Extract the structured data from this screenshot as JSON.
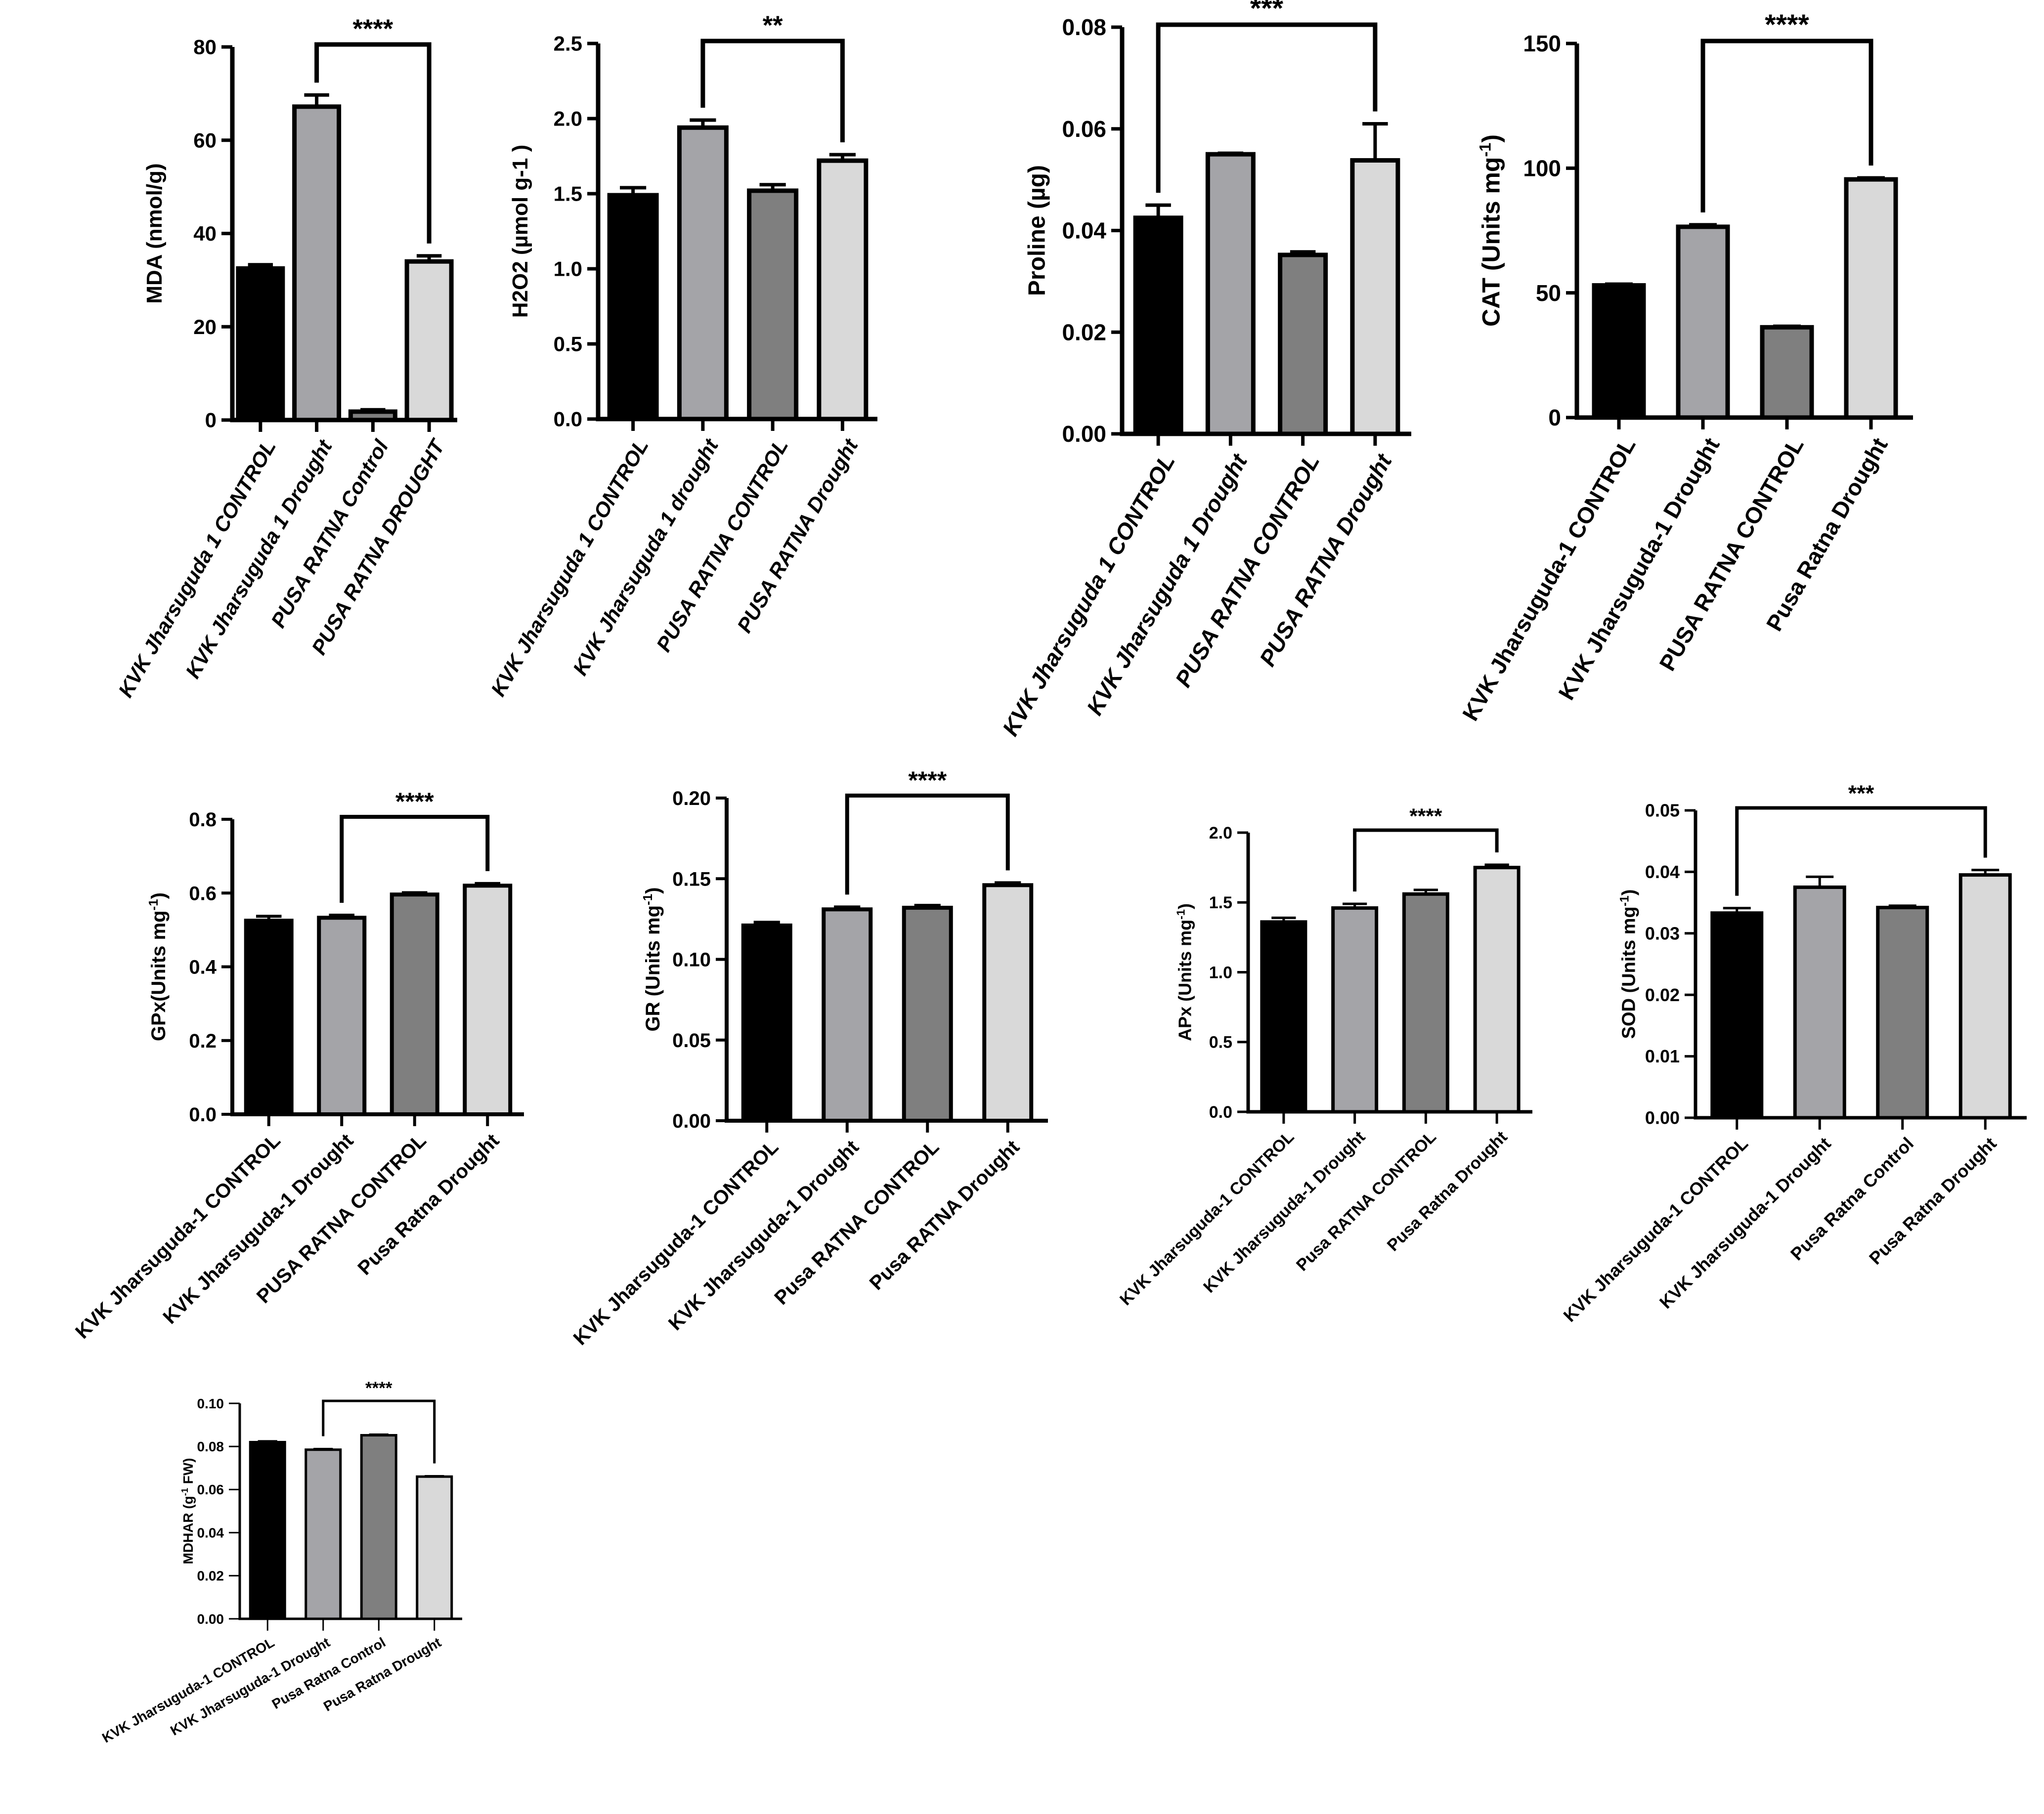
{
  "colors": {
    "bar_black": "#000000",
    "bar_gray_light": "#a4a4a8",
    "bar_gray_dark": "#7f7f7f",
    "bar_very_light": "#d9d9d9",
    "axis": "#000000"
  },
  "chart_data": [
    {
      "id": "mda",
      "type": "bar",
      "ylabel": "MDA (nmol/g)",
      "ylim": [
        0,
        80
      ],
      "yticks": [
        "0",
        "20",
        "40",
        "60",
        "80"
      ],
      "categories": [
        "KVK Jharsuguda 1 CONTROL",
        "KVK Jharsuguda 1 Drought",
        "PUSA RATNA Control",
        "PUSA RATNA DROUGHT"
      ],
      "values": [
        32.5,
        67.2,
        1.8,
        34.0
      ],
      "errors": [
        0.8,
        2.5,
        0.4,
        1.2
      ],
      "significance": {
        "label": "****",
        "from": 1,
        "to": 3
      }
    },
    {
      "id": "h2o2",
      "type": "bar",
      "ylabel": "H2O2 (µmol g-1 )",
      "ylim": [
        0,
        2.5
      ],
      "yticks": [
        "0.0",
        "0.5",
        "1.0",
        "1.5",
        "2.0",
        "2.5"
      ],
      "categories": [
        "KVK Jharsuguda 1 CONTROL",
        "KVK Jharsuguda 1 drought",
        "PUSA RATNA CONTROL",
        "PUSA RATNA Drought"
      ],
      "values": [
        1.49,
        1.94,
        1.52,
        1.72
      ],
      "errors": [
        0.05,
        0.05,
        0.04,
        0.04
      ],
      "significance": {
        "label": "**",
        "from": 1,
        "to": 3
      }
    },
    {
      "id": "proline",
      "type": "bar",
      "ylabel": "Proline (µg)",
      "ylim": [
        0,
        0.08
      ],
      "yticks": [
        "0.00",
        "0.02",
        "0.04",
        "0.06",
        "0.08"
      ],
      "categories": [
        "KVK Jharsuguda 1 CONTROL",
        "KVK Jharsuguda 1 Drought",
        "PUSA RATNA CONTROL",
        "PUSA RATNA Drought"
      ],
      "values": [
        0.0425,
        0.055,
        0.0352,
        0.0538
      ],
      "errors": [
        0.0025,
        0.0002,
        0.0006,
        0.0072
      ],
      "significance": {
        "label": "***",
        "from": 0,
        "to": 3
      }
    },
    {
      "id": "cat",
      "type": "bar",
      "ylabel": "CAT (Units mg",
      "ylabel_sup": "-1",
      "ylabel_close": ")",
      "ylim": [
        0,
        150
      ],
      "yticks": [
        "0",
        "50",
        "100",
        "150"
      ],
      "categories": [
        "KVK Jharsuguda-1 CONTROL",
        "KVK Jharsuguda-1 Drought",
        "PUSA RATNA CONTROL",
        "Pusa Ratna Drought"
      ],
      "values": [
        53,
        76.5,
        36.2,
        95.5
      ],
      "errors": [
        0.5,
        0.8,
        0.4,
        0.6
      ],
      "significance": {
        "label": "****",
        "from": 1,
        "to": 3
      }
    },
    {
      "id": "gpx",
      "type": "bar",
      "ylabel": "GPx(Units mg",
      "ylabel_sup": "-1",
      "ylabel_close": ")",
      "ylim": [
        0,
        0.8
      ],
      "yticks": [
        "0.0",
        "0.2",
        "0.4",
        "0.6",
        "0.8"
      ],
      "categories": [
        "KVK Jharsuguda-1 CONTROL",
        "KVK Jharsuguda-1 Drought",
        "PUSA RATNA CONTROL",
        "Pusa Ratna Drought"
      ],
      "values": [
        0.525,
        0.533,
        0.596,
        0.62
      ],
      "errors": [
        0.012,
        0.007,
        0.005,
        0.006
      ],
      "significance": {
        "label": "****",
        "from": 1,
        "to": 3
      }
    },
    {
      "id": "gr",
      "type": "bar",
      "ylabel": "GR (Units mg",
      "ylabel_sup": "-1",
      "ylabel_close": ")",
      "ylim": [
        0,
        0.2
      ],
      "yticks": [
        "0.00",
        "0.05",
        "0.10",
        "0.15",
        "0.20"
      ],
      "categories": [
        "KVK Jharsuguda-1 CONTROL",
        "KVK Jharsuguda-1 Drought",
        "Pusa RATNA CONTROL",
        "Pusa RATNA Drought"
      ],
      "values": [
        0.121,
        0.131,
        0.132,
        0.146
      ],
      "errors": [
        0.002,
        0.0015,
        0.0015,
        0.0015
      ],
      "significance": {
        "label": "****",
        "from": 1,
        "to": 3
      }
    },
    {
      "id": "apx",
      "type": "bar",
      "ylabel": "APx (Units mg",
      "ylabel_sup": "-1",
      "ylabel_close": ")",
      "ylim": [
        0,
        2.0
      ],
      "yticks": [
        "0.0",
        "0.5",
        "1.0",
        "1.5",
        "2.0"
      ],
      "categories": [
        "KVK Jharsuguda-1 CONTROL",
        "KVK Jharsuguda-1 Drought",
        "Pusa RATNA CONTROL",
        "Pusa Ratna Drought"
      ],
      "values": [
        1.36,
        1.46,
        1.56,
        1.75
      ],
      "errors": [
        0.03,
        0.03,
        0.03,
        0.02
      ],
      "significance": {
        "label": "****",
        "from": 1,
        "to": 3
      }
    },
    {
      "id": "sod",
      "type": "bar",
      "ylabel": "SOD (Units mg",
      "ylabel_sup": "-1",
      "ylabel_close": ")",
      "ylim": [
        0,
        0.05
      ],
      "yticks": [
        "0.00",
        "0.01",
        "0.02",
        "0.03",
        "0.04",
        "0.05"
      ],
      "categories": [
        "KVK Jharsuguda-1 CONTROL",
        "KVK Jharsuguda-1 Drought",
        "Pusa Ratna Control",
        "Pusa Ratna Drought"
      ],
      "values": [
        0.0333,
        0.0375,
        0.0342,
        0.0395
      ],
      "errors": [
        0.0008,
        0.0017,
        0.0003,
        0.0008
      ],
      "significance": {
        "label": "***",
        "from": 0,
        "to": 3
      }
    },
    {
      "id": "mdhar",
      "type": "bar",
      "ylabel": "MDHAR (g",
      "ylabel_sup": "-1",
      "ylabel_close": " FW)",
      "ylim": [
        0,
        0.1
      ],
      "yticks": [
        "0.00",
        "0.02",
        "0.04",
        "0.06",
        "0.08",
        "0.10"
      ],
      "categories": [
        "KVK Jharsuguda-1 CONTROL",
        "KVK Jharsuguda-1 Drought",
        "Pusa Ratna Control",
        "Pusa Ratna Drought"
      ],
      "values": [
        0.082,
        0.0785,
        0.0852,
        0.066
      ],
      "errors": [
        0.0006,
        0.0005,
        0.0005,
        0.0004
      ],
      "significance": {
        "label": "****",
        "from": 1,
        "to": 3
      }
    }
  ]
}
